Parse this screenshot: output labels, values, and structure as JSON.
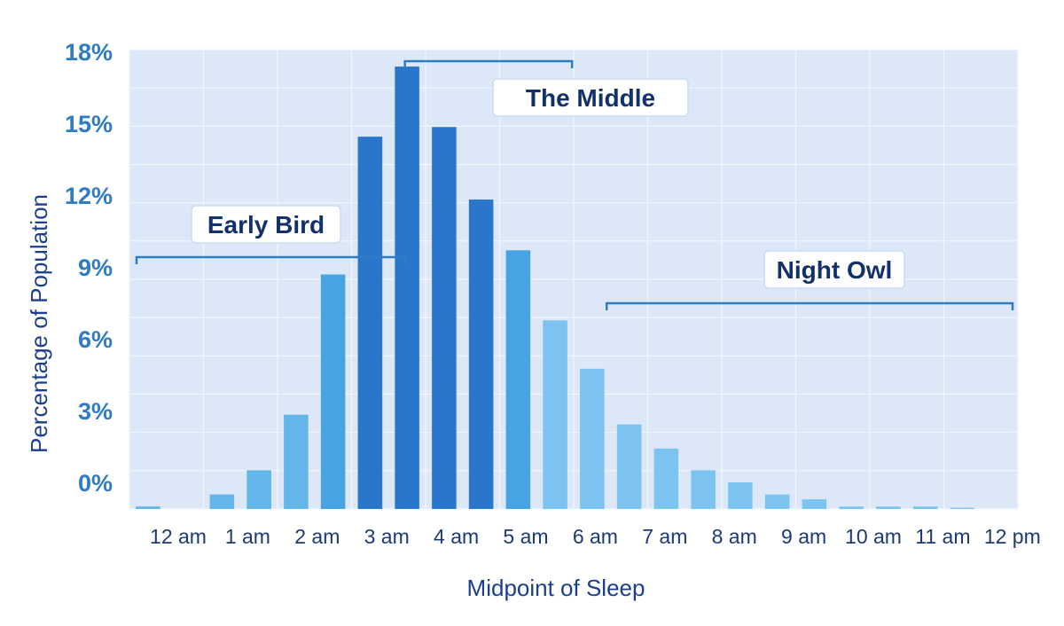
{
  "chart_data": {
    "type": "bar",
    "xlabel": "Midpoint of Sleep",
    "ylabel": "Percentage of Population",
    "y_ticks": [
      "0%",
      "3%",
      "6%",
      "9%",
      "12%",
      "15%",
      "18%"
    ],
    "x_tick_labels": [
      "12 am",
      "1 am",
      "2 am",
      "3 am",
      "4 am",
      "5 am",
      "6 am",
      "7 am",
      "8 am",
      "9 am",
      "10 am",
      "11 am",
      "12 pm"
    ],
    "ylim": [
      -1,
      18
    ],
    "grid": true,
    "legend": "none",
    "values": [
      -0.9,
      -1.0,
      -0.4,
      0.6,
      2.9,
      8.7,
      14.4,
      17.3,
      14.8,
      11.8,
      9.7,
      6.8,
      4.8,
      2.5,
      1.5,
      0.6,
      0.1,
      -0.4,
      -0.6,
      -0.9,
      -0.9,
      -0.9,
      -0.95,
      -1.0
    ],
    "groups": [
      {
        "label": "Early Bird",
        "color": "#63b5ea",
        "bars": [
          0,
          5
        ]
      },
      {
        "label": "The Middle",
        "color": "#2a76cc",
        "bars": [
          6,
          9
        ]
      },
      {
        "label": "Night Owl",
        "color": "#7cc4ef",
        "bars": [
          10,
          23
        ]
      }
    ],
    "colors": {
      "plot_background": "#dce8f7",
      "grid": "#f2f7fd",
      "bracket": "#2f7cc4",
      "early_bird_bar": "#63b5ea",
      "transition_bar": "#46a4e3",
      "middle_bar": "#2a76cc",
      "night_owl_bar": "#7cc4ef"
    }
  }
}
